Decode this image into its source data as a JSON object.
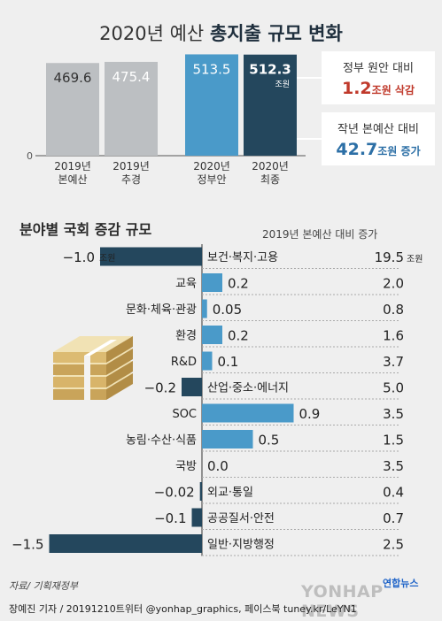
{
  "header": {
    "title_light": "2020년 예산",
    "title_bold": "총지출 규모 변화"
  },
  "colors": {
    "gray_bar": "#bcbfc2",
    "blue_bar": "#4a9ac9",
    "navy_bar": "#24475d",
    "accent_red": "#c0392b",
    "accent_blue": "#2c6fa6"
  },
  "callouts": {
    "cut": {
      "caption": "정부 원안 대비",
      "value": "1.2",
      "unit": "조원 삭감"
    },
    "increase": {
      "caption": "작년 본예산 대비",
      "value": "42.7",
      "unit": "조원 증가"
    }
  },
  "section2": {
    "title": "분야별 국회 증감 규모",
    "right_header": "2019년 본예산 대비 증가"
  },
  "chart_data": [
    {
      "type": "bar",
      "title": "2020년 예산 총지출 규모 변화",
      "unit_note": "조원",
      "categories": [
        "2019년 본예산",
        "2019년 추경",
        "2020년 정부안",
        "2020년 최종"
      ],
      "values": [
        469.6,
        475.4,
        513.5,
        512.3
      ],
      "value_labels": [
        "469.6",
        "475.4",
        "513.5",
        "512.3"
      ],
      "y_axis_zero_label": "0",
      "colors": [
        "#bcbfc2",
        "#bcbfc2",
        "#4a9ac9",
        "#24475d"
      ]
    },
    {
      "type": "bar",
      "orientation": "horizontal",
      "title": "분야별 국회 증감 규모",
      "unit": "조원",
      "categories": [
        "보건·복지·고용",
        "교육",
        "문화·체육·관광",
        "환경",
        "R&D",
        "산업·중소·에너지",
        "SOC",
        "농림·수산·식품",
        "국방",
        "외교·통일",
        "공공질서·안전",
        "일반·지방행정"
      ],
      "values": [
        -1.0,
        0.2,
        0.05,
        0.2,
        0.1,
        -0.2,
        0.9,
        0.5,
        0.0,
        -0.02,
        -0.1,
        -1.5
      ],
      "value_labels": [
        "−1.0",
        "0.2",
        "0.05",
        "0.2",
        "0.1",
        "−0.2",
        "0.9",
        "0.5",
        "0.0",
        "−0.02",
        "−0.1",
        "−1.5"
      ],
      "first_label_unit": "조원",
      "series": [
        {
          "name": "2019년 본예산 대비 증가",
          "values": [
            19.5,
            2.0,
            0.8,
            1.6,
            3.7,
            5.0,
            3.5,
            1.5,
            3.5,
            0.4,
            0.7,
            2.5
          ],
          "value_labels": [
            "19.5",
            "2.0",
            "0.8",
            "1.6",
            "3.7",
            "5.0",
            "3.5",
            "1.5",
            "3.5",
            "0.4",
            "0.7",
            "2.5"
          ],
          "unit": "조원"
        }
      ],
      "colors": {
        "negative": "#24475d",
        "positive": "#4a9ac9"
      }
    }
  ],
  "footer": {
    "source": "자료/ 기획재정부",
    "credit": "장예진 기자 / 20191210트위터 @yonhap_graphics, 페이스북 tuney.kr/LeYN1",
    "brand": "연합뉴스",
    "watermark": "YONHAP NEWS"
  }
}
